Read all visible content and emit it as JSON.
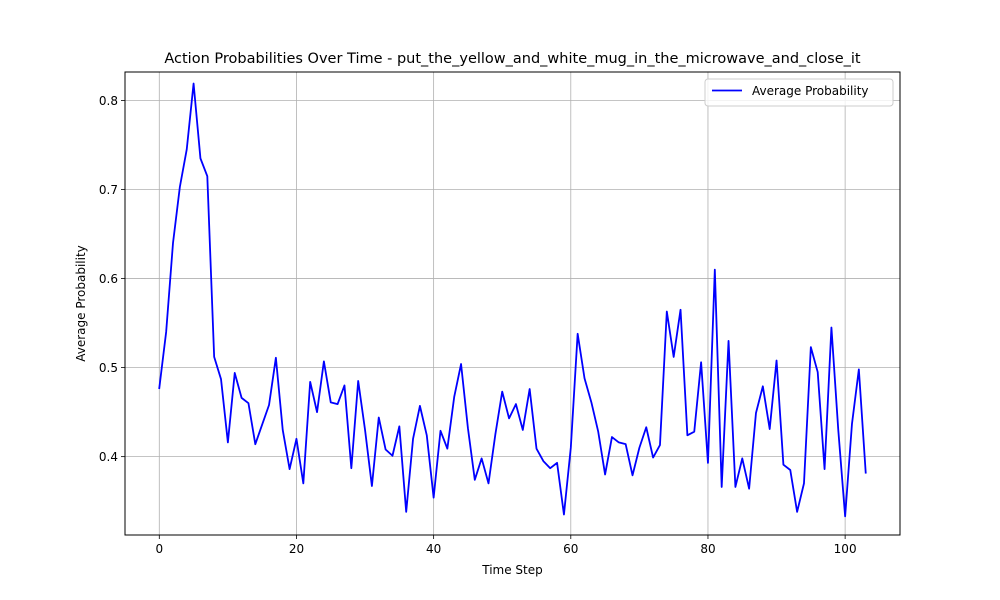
{
  "chart_data": {
    "type": "line",
    "title": "Action Probabilities Over Time - put_the_yellow_and_white_mug_in_the_microwave_and_close_it",
    "xlabel": "Time Step",
    "ylabel": "Average Probability",
    "xlim": [
      -5,
      108
    ],
    "ylim": [
      0.312,
      0.832
    ],
    "xticks": [
      0,
      20,
      40,
      60,
      80,
      100
    ],
    "yticks": [
      0.4,
      0.5,
      0.6,
      0.7,
      0.8
    ],
    "xtick_labels": [
      "0",
      "20",
      "40",
      "60",
      "80",
      "100"
    ],
    "ytick_labels": [
      "0.4",
      "0.5",
      "0.6",
      "0.7",
      "0.8"
    ],
    "grid": true,
    "legend_position": "top-right",
    "series": [
      {
        "name": "Average Probability",
        "color": "#0000ff",
        "x": [
          0,
          1,
          2,
          3,
          4,
          5,
          6,
          7,
          8,
          9,
          10,
          11,
          12,
          13,
          14,
          15,
          16,
          17,
          18,
          19,
          20,
          21,
          22,
          23,
          24,
          25,
          26,
          27,
          28,
          29,
          30,
          31,
          32,
          33,
          34,
          35,
          36,
          37,
          38,
          39,
          40,
          41,
          42,
          43,
          44,
          45,
          46,
          47,
          48,
          49,
          50,
          51,
          52,
          53,
          54,
          55,
          56,
          57,
          58,
          59,
          60,
          61,
          62,
          63,
          64,
          65,
          66,
          67,
          68,
          69,
          70,
          71,
          72,
          73,
          74,
          75,
          76,
          77,
          78,
          79,
          80,
          81,
          82,
          83,
          84,
          85,
          86,
          87,
          88,
          89,
          90,
          91,
          92,
          93,
          94,
          95,
          96,
          97,
          98,
          99,
          100,
          101,
          102,
          103
        ],
        "values": [
          0.477,
          0.54,
          0.64,
          0.703,
          0.745,
          0.819,
          0.735,
          0.715,
          0.512,
          0.487,
          0.416,
          0.494,
          0.466,
          0.46,
          0.414,
          0.436,
          0.458,
          0.511,
          0.43,
          0.386,
          0.42,
          0.37,
          0.484,
          0.45,
          0.507,
          0.461,
          0.459,
          0.48,
          0.387,
          0.485,
          0.43,
          0.367,
          0.444,
          0.408,
          0.401,
          0.434,
          0.338,
          0.42,
          0.457,
          0.424,
          0.354,
          0.429,
          0.409,
          0.467,
          0.504,
          0.432,
          0.374,
          0.398,
          0.37,
          0.425,
          0.473,
          0.443,
          0.459,
          0.43,
          0.476,
          0.409,
          0.395,
          0.387,
          0.393,
          0.335,
          0.41,
          0.538,
          0.488,
          0.461,
          0.428,
          0.38,
          0.422,
          0.416,
          0.414,
          0.379,
          0.41,
          0.433,
          0.399,
          0.413,
          0.563,
          0.512,
          0.565,
          0.424,
          0.428,
          0.506,
          0.393,
          0.61,
          0.366,
          0.53,
          0.366,
          0.398,
          0.364,
          0.449,
          0.479,
          0.431,
          0.508,
          0.391,
          0.385,
          0.338,
          0.37,
          0.523,
          0.495,
          0.386,
          0.545,
          0.43,
          0.333,
          0.437,
          0.498,
          0.382
        ]
      }
    ]
  }
}
